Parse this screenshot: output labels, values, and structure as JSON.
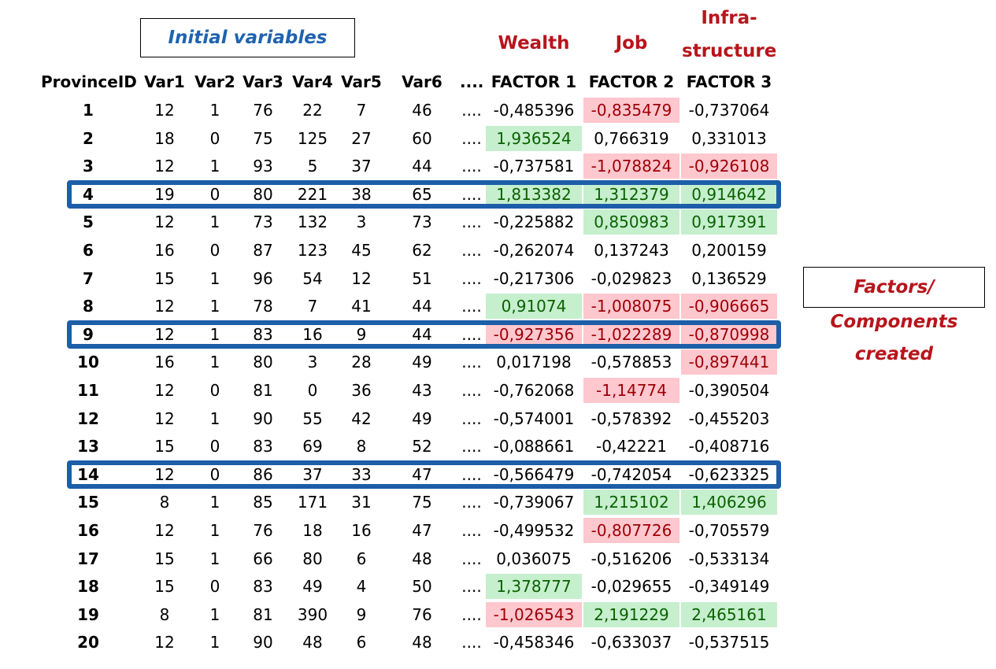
{
  "titles": {
    "initial_variables": "Initial variables",
    "factor1_name": "Wealth",
    "factor2_name": "Job",
    "factor3_name_line1": "Infra-",
    "factor3_name_line2": "structure",
    "side_line1": "Factors/",
    "side_line2": "Components",
    "side_line3": "created"
  },
  "chart_data": {
    "type": "table",
    "columns": [
      "ProvinceID",
      "Var1",
      "Var2",
      "Var3",
      "Var4",
      "Var5",
      "Var6",
      "....",
      "FACTOR 1",
      "FACTOR 2",
      "FACTOR 3"
    ],
    "rows": [
      [
        "1",
        "12",
        "1",
        "76",
        "22",
        "7",
        "46",
        "....",
        "-0,485396",
        "-0,835479",
        "-0,737064"
      ],
      [
        "2",
        "18",
        "0",
        "75",
        "125",
        "27",
        "60",
        "....",
        "1,936524",
        "0,766319",
        "0,331013"
      ],
      [
        "3",
        "12",
        "1",
        "93",
        "5",
        "37",
        "44",
        "....",
        "-0,737581",
        "-1,078824",
        "-0,926108"
      ],
      [
        "4",
        "19",
        "0",
        "80",
        "221",
        "38",
        "65",
        "....",
        "1,813382",
        "1,312379",
        "0,914642"
      ],
      [
        "5",
        "12",
        "1",
        "73",
        "132",
        "3",
        "73",
        "....",
        "-0,225882",
        "0,850983",
        "0,917391"
      ],
      [
        "6",
        "16",
        "0",
        "87",
        "123",
        "45",
        "62",
        "....",
        "-0,262074",
        "0,137243",
        "0,200159"
      ],
      [
        "7",
        "15",
        "1",
        "96",
        "54",
        "12",
        "51",
        "....",
        "-0,217306",
        "-0,029823",
        "0,136529"
      ],
      [
        "8",
        "12",
        "1",
        "78",
        "7",
        "41",
        "44",
        "....",
        "0,91074",
        "-1,008075",
        "-0,906665"
      ],
      [
        "9",
        "12",
        "1",
        "83",
        "16",
        "9",
        "44",
        "....",
        "-0,927356",
        "-1,022289",
        "-0,870998"
      ],
      [
        "10",
        "16",
        "1",
        "80",
        "3",
        "28",
        "49",
        "....",
        "0,017198",
        "-0,578853",
        "-0,897441"
      ],
      [
        "11",
        "12",
        "0",
        "81",
        "0",
        "36",
        "43",
        "....",
        "-0,762068",
        "-1,14774",
        "-0,390504"
      ],
      [
        "12",
        "12",
        "1",
        "90",
        "55",
        "42",
        "49",
        "....",
        "-0,574001",
        "-0,578392",
        "-0,455203"
      ],
      [
        "13",
        "15",
        "0",
        "83",
        "69",
        "8",
        "52",
        "....",
        "-0,088661",
        "-0,42221",
        "-0,408716"
      ],
      [
        "14",
        "12",
        "0",
        "86",
        "37",
        "33",
        "47",
        "....",
        "-0,566479",
        "-0,742054",
        "-0,623325"
      ],
      [
        "15",
        "8",
        "1",
        "85",
        "171",
        "31",
        "75",
        "....",
        "-0,739067",
        "1,215102",
        "1,406296"
      ],
      [
        "16",
        "12",
        "1",
        "76",
        "18",
        "16",
        "47",
        "....",
        "-0,499532",
        "-0,807726",
        "-0,705579"
      ],
      [
        "17",
        "15",
        "1",
        "66",
        "80",
        "6",
        "48",
        "....",
        "0,036075",
        "-0,516206",
        "-0,533134"
      ],
      [
        "18",
        "15",
        "0",
        "83",
        "49",
        "4",
        "50",
        "....",
        "1,378777",
        "-0,029655",
        "-0,349149"
      ],
      [
        "19",
        "8",
        "1",
        "81",
        "390",
        "9",
        "76",
        "....",
        "-1,026543",
        "2,191229",
        "2,465161"
      ],
      [
        "20",
        "12",
        "1",
        "90",
        "48",
        "6",
        "48",
        "....",
        "-0,458346",
        "-0,633037",
        "-0,537515"
      ]
    ],
    "highlights": [
      {
        "row": 0,
        "col": 9,
        "color": "red"
      },
      {
        "row": 1,
        "col": 8,
        "color": "green"
      },
      {
        "row": 2,
        "col": 9,
        "color": "red"
      },
      {
        "row": 2,
        "col": 10,
        "color": "red"
      },
      {
        "row": 3,
        "col": 8,
        "color": "green"
      },
      {
        "row": 3,
        "col": 9,
        "color": "green"
      },
      {
        "row": 3,
        "col": 10,
        "color": "green"
      },
      {
        "row": 4,
        "col": 9,
        "color": "green"
      },
      {
        "row": 4,
        "col": 10,
        "color": "green"
      },
      {
        "row": 7,
        "col": 8,
        "color": "green"
      },
      {
        "row": 7,
        "col": 9,
        "color": "red"
      },
      {
        "row": 7,
        "col": 10,
        "color": "red"
      },
      {
        "row": 8,
        "col": 8,
        "color": "red"
      },
      {
        "row": 8,
        "col": 9,
        "color": "red"
      },
      {
        "row": 8,
        "col": 10,
        "color": "red"
      },
      {
        "row": 9,
        "col": 10,
        "color": "red"
      },
      {
        "row": 10,
        "col": 9,
        "color": "red"
      },
      {
        "row": 14,
        "col": 9,
        "color": "green"
      },
      {
        "row": 14,
        "col": 10,
        "color": "green"
      },
      {
        "row": 15,
        "col": 9,
        "color": "red"
      },
      {
        "row": 17,
        "col": 8,
        "color": "green"
      },
      {
        "row": 18,
        "col": 8,
        "color": "red"
      },
      {
        "row": 18,
        "col": 9,
        "color": "green"
      },
      {
        "row": 18,
        "col": 10,
        "color": "green"
      }
    ],
    "outlined_rows": [
      3,
      8,
      13
    ],
    "colors": {
      "highlight_green": "#c6efce",
      "highlight_red": "#ffc7ce",
      "outline": "#1c5ea8",
      "factor_title": "#b7151c",
      "initial_title": "#1f63b0"
    }
  }
}
